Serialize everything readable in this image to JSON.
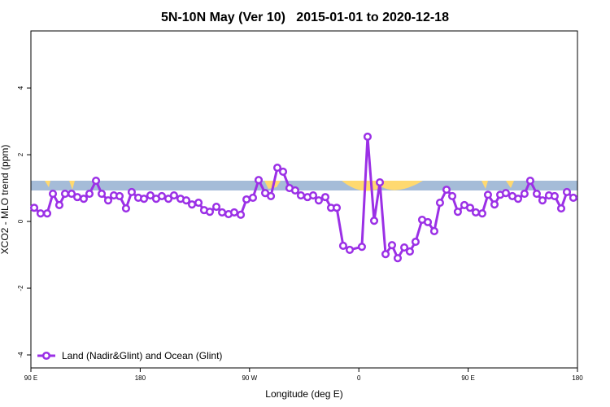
{
  "chart_data": {
    "type": "line",
    "title": "5N-10N May (Ver 10)   2015-01-01 to 2020-12-18",
    "x_label": "Longitude (deg E)",
    "y_label": "XCO2 - MLO trend (ppm)",
    "xlim": [
      90,
      540
    ],
    "xticks": [
      {
        "value": 90,
        "label": "90 E"
      },
      180,
      {
        "value": 270,
        "label": "90 W"
      },
      {
        "value": 360,
        "label": "0"
      },
      {
        "value": 450,
        "label": "90 E"
      },
      {
        "value": 540,
        "label": "180"
      }
    ],
    "ylim": [
      -4.39,
      5.71
    ],
    "yticks": [
      -4,
      -2,
      0,
      2,
      4
    ],
    "legend": "bottom-left",
    "x": [
      92.7,
      98.0,
      103.4,
      108.1,
      113.4,
      118.1,
      123.5,
      128.2,
      133.5,
      138.2,
      143.6,
      148.3,
      153.6,
      158.3,
      163.0,
      168.3,
      173.0,
      178.4,
      183.1,
      188.4,
      193.1,
      197.8,
      203.2,
      207.8,
      213.2,
      217.9,
      222.6,
      228.0,
      232.6,
      237.3,
      242.7,
      247.4,
      252.7,
      257.4,
      262.8,
      267.5,
      272.8,
      277.5,
      282.9,
      287.6,
      292.9,
      297.6,
      302.9,
      307.6,
      312.3,
      317.7,
      322.4,
      327.0,
      332.4,
      337.1,
      341.8,
      347.1,
      352.5,
      362.5,
      367.2,
      372.6,
      377.3,
      382.0,
      387.3,
      392.0,
      397.4,
      402.0,
      406.7,
      412.1,
      416.8,
      422.1,
      426.8,
      432.2,
      436.9,
      441.5,
      446.9,
      451.6,
      456.3,
      461.6,
      466.3,
      471.7,
      476.4,
      481.0,
      486.4,
      491.1,
      496.4,
      501.1,
      506.5,
      511.2,
      516.5,
      521.2,
      526.6,
      531.3,
      536.6
    ],
    "series": [
      {
        "name": "Land (Nadir&Glint) and Ocean (Glint)",
        "color": "#9b30e6",
        "values": [
          0.41,
          0.24,
          0.24,
          0.83,
          0.49,
          0.83,
          0.83,
          0.73,
          0.68,
          0.83,
          1.22,
          0.83,
          0.63,
          0.78,
          0.76,
          0.39,
          0.88,
          0.71,
          0.68,
          0.78,
          0.68,
          0.76,
          0.68,
          0.78,
          0.68,
          0.63,
          0.51,
          0.56,
          0.34,
          0.29,
          0.44,
          0.27,
          0.22,
          0.27,
          0.2,
          0.66,
          0.71,
          1.24,
          0.85,
          0.76,
          1.61,
          1.49,
          1.0,
          0.93,
          0.78,
          0.73,
          0.78,
          0.63,
          0.73,
          0.41,
          0.41,
          -0.73,
          -0.85,
          -0.76,
          2.54,
          0.02,
          1.17,
          -0.98,
          -0.71,
          -1.1,
          -0.78,
          -0.9,
          -0.61,
          0.05,
          -0.02,
          -0.29,
          0.56,
          0.95,
          0.76,
          0.29,
          0.49,
          0.41,
          0.27,
          0.24,
          0.8,
          0.51,
          0.8,
          0.85,
          0.76,
          0.68,
          0.83,
          1.22,
          0.83,
          0.63,
          0.78,
          0.76,
          0.39,
          0.88,
          0.71
        ]
      }
    ]
  }
}
